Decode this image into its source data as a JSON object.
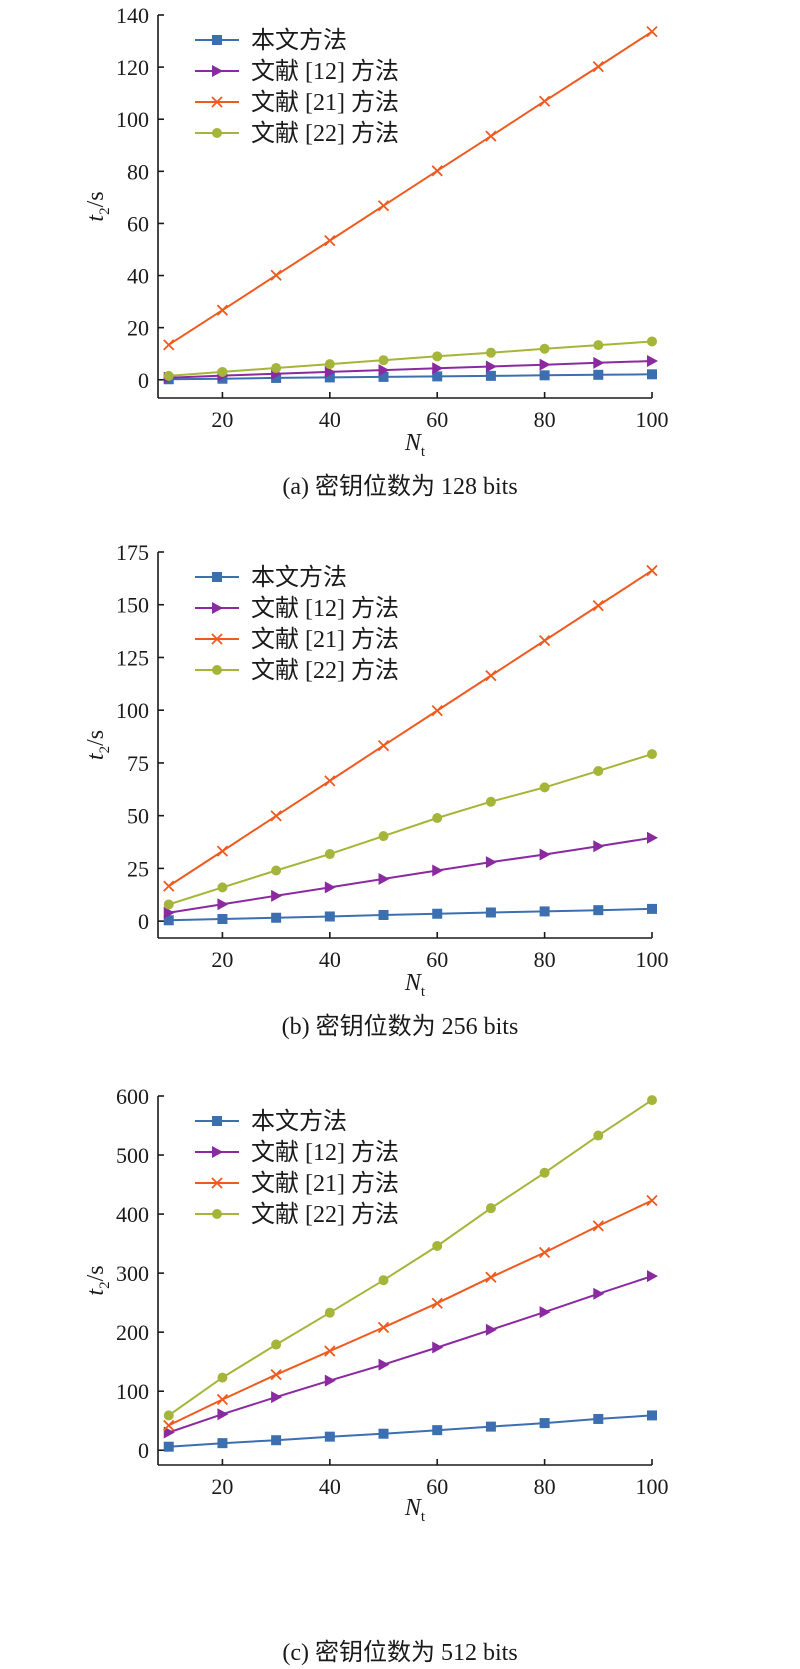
{
  "colors": {
    "本文方法": "#3b6fb0",
    "文献 [12] 方法": "#8b2aa0",
    "文献 [21] 方法": "#ef5a1e",
    "文献 [22] 方法": "#a5b53a"
  },
  "chart_data": [
    {
      "type": "line",
      "caption": "(a) 密钥位数为 128 bits",
      "xlabel": "N",
      "xlabel_sub": "t",
      "ylabel": "t",
      "ylabel_sub": "2",
      "ylabel_unit": "/s",
      "xlim": [
        8,
        100
      ],
      "ylim": [
        -7,
        140
      ],
      "xticks": [
        20,
        40,
        60,
        80,
        100
      ],
      "yticks": [
        0,
        20,
        40,
        60,
        80,
        100,
        120,
        140
      ],
      "x": [
        10,
        20,
        30,
        40,
        50,
        60,
        70,
        80,
        90,
        100
      ],
      "legend_position": "top-left",
      "series": [
        {
          "name": "本文方法",
          "marker": "square",
          "values": [
            0.2,
            0.4,
            0.7,
            0.9,
            1.1,
            1.3,
            1.5,
            1.7,
            1.9,
            2.1
          ]
        },
        {
          "name": "文献 [12] 方法",
          "marker": "triangle",
          "values": [
            0.8,
            1.6,
            2.3,
            3.0,
            3.7,
            4.4,
            5.1,
            5.8,
            6.5,
            7.2
          ]
        },
        {
          "name": "文献 [21] 方法",
          "marker": "x",
          "values": [
            13.4,
            26.7,
            40.1,
            53.4,
            66.8,
            80.2,
            93.5,
            106.9,
            120.2,
            133.6
          ]
        },
        {
          "name": "文献 [22] 方法",
          "marker": "circle",
          "values": [
            1.5,
            3.0,
            4.5,
            6.0,
            7.5,
            9.0,
            10.4,
            11.9,
            13.3,
            14.7
          ]
        }
      ]
    },
    {
      "type": "line",
      "caption": "(b) 密钥位数为 256 bits",
      "xlabel": "N",
      "xlabel_sub": "t",
      "ylabel": "t",
      "ylabel_sub": "2",
      "ylabel_unit": "/s",
      "xlim": [
        8,
        100
      ],
      "ylim": [
        -8,
        175
      ],
      "xticks": [
        20,
        40,
        60,
        80,
        100
      ],
      "yticks": [
        0,
        25,
        50,
        75,
        100,
        125,
        150,
        175
      ],
      "x": [
        10,
        20,
        30,
        40,
        50,
        60,
        70,
        80,
        90,
        100
      ],
      "legend_position": "top-left",
      "series": [
        {
          "name": "本文方法",
          "marker": "square",
          "values": [
            0.4,
            1.0,
            1.6,
            2.2,
            2.9,
            3.5,
            4.1,
            4.6,
            5.2,
            5.8
          ]
        },
        {
          "name": "文献 [12] 方法",
          "marker": "triangle",
          "values": [
            4.0,
            8.0,
            12.0,
            16.0,
            20.0,
            24.0,
            28.0,
            31.6,
            35.5,
            39.5
          ]
        },
        {
          "name": "文献 [21] 方法",
          "marker": "x",
          "values": [
            16.6,
            33.2,
            49.9,
            66.5,
            83.2,
            99.8,
            116.4,
            133.0,
            149.6,
            166.2
          ]
        },
        {
          "name": "文献 [22] 方法",
          "marker": "circle",
          "values": [
            7.9,
            16.0,
            24.0,
            31.8,
            40.3,
            48.9,
            56.6,
            63.4,
            71.2,
            79.2
          ]
        }
      ]
    },
    {
      "type": "line",
      "caption": "(c) 密钥位数为 512 bits",
      "xlabel": "N",
      "xlabel_sub": "t",
      "ylabel": "t",
      "ylabel_sub": "2",
      "ylabel_unit": "/s",
      "xlim": [
        8,
        100
      ],
      "ylim": [
        -25,
        600
      ],
      "xticks": [
        20,
        40,
        60,
        80,
        100
      ],
      "yticks": [
        0,
        100,
        200,
        300,
        400,
        500,
        600
      ],
      "x": [
        10,
        20,
        30,
        40,
        50,
        60,
        70,
        80,
        90,
        100
      ],
      "legend_position": "top-left",
      "series": [
        {
          "name": "本文方法",
          "marker": "square",
          "values": [
            6,
            12,
            17,
            23,
            28,
            34,
            40,
            46,
            53,
            59
          ]
        },
        {
          "name": "文献 [12] 方法",
          "marker": "triangle",
          "values": [
            30,
            61,
            90,
            118,
            145,
            174,
            204,
            234,
            265,
            295
          ]
        },
        {
          "name": "文献 [21] 方法",
          "marker": "x",
          "values": [
            42,
            86,
            128,
            168,
            208,
            249,
            293,
            335,
            380,
            423
          ]
        },
        {
          "name": "文献 [22] 方法",
          "marker": "circle",
          "values": [
            59,
            123,
            179,
            233,
            288,
            346,
            410,
            470,
            533,
            593
          ]
        }
      ]
    }
  ]
}
